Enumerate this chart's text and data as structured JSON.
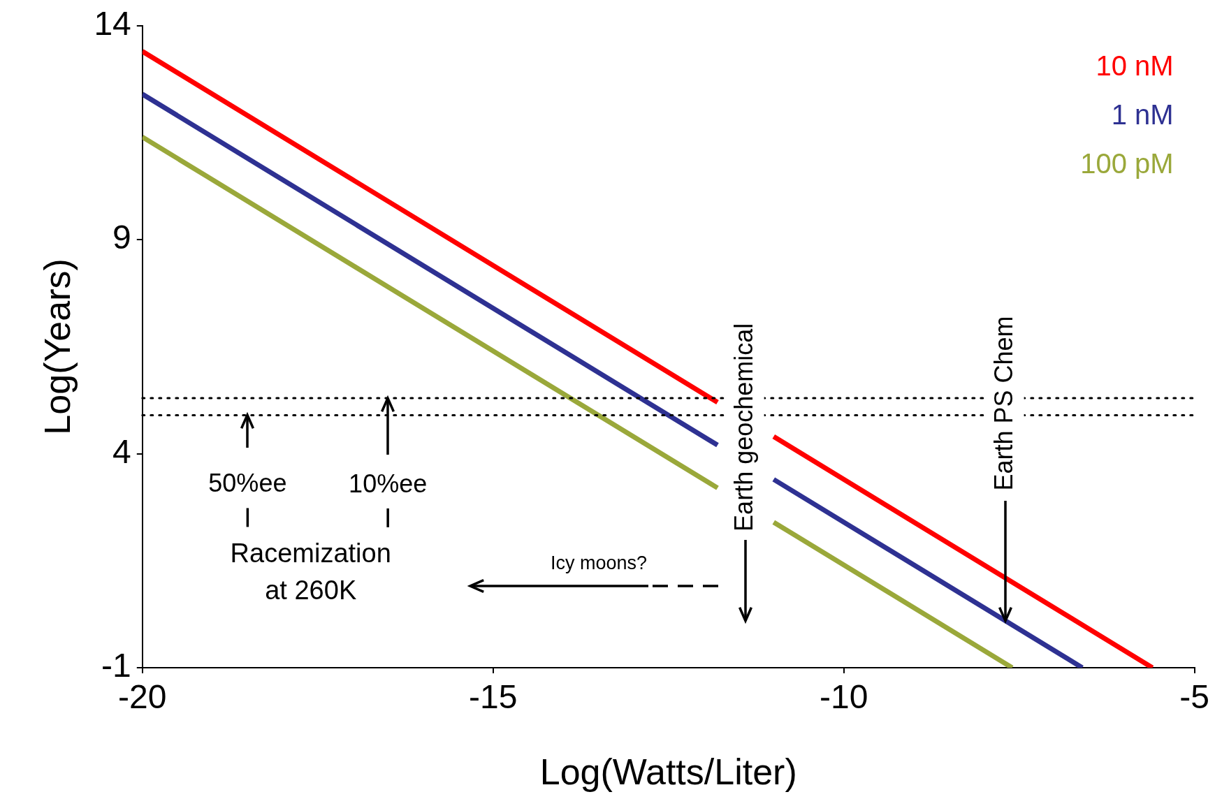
{
  "chart_data": {
    "type": "line",
    "xlabel": "Log(Watts/Liter)",
    "ylabel": "Log(Years)",
    "xlim": [
      -20,
      -5
    ],
    "xticks": [
      -20,
      -15,
      -10,
      -5
    ],
    "ylim": [
      -1,
      14
    ],
    "yticks": [
      -1,
      4,
      9,
      14
    ],
    "grid": false,
    "legend": "top right",
    "marker": "none",
    "line_style": "solid",
    "series": [
      {
        "name": "10 nM",
        "color": "#ff0000",
        "x": [
          -20,
          -11.8,
          -11.4,
          -11.0,
          -5.6
        ],
        "values": [
          13.4,
          5.2,
          null,
          4.4,
          -1
        ]
      },
      {
        "name": "1 nM",
        "color": "#2e3192",
        "x": [
          -20,
          -11.8,
          -11.4,
          -11.0,
          -6.6
        ],
        "values": [
          12.4,
          4.2,
          null,
          3.4,
          -1
        ]
      },
      {
        "name": "100 pM",
        "color": "#9aa83a",
        "x": [
          -20,
          -11.8,
          -11.4,
          -11.0,
          -7.6
        ],
        "values": [
          11.4,
          3.2,
          null,
          2.4,
          -1
        ]
      }
    ],
    "ref_lines": [
      {
        "axis": "y",
        "value": 5.3,
        "color": "#000000",
        "line_style": "dotted"
      },
      {
        "axis": "y",
        "value": 4.9,
        "color": "#000000",
        "line_style": "dotted"
      }
    ],
    "annotations": [
      "Earth geochemical",
      {
        "text": "Earth PS Chem",
        "x": -7.7,
        "y": 0.1
      },
      {
        "text": "50%ee",
        "x": -18.5,
        "y": 4.9
      },
      {
        "text": "10%ee",
        "x": -16.5,
        "y": 5.3
      },
      "Racemization at 260K",
      "Icy moons?"
    ]
  }
}
